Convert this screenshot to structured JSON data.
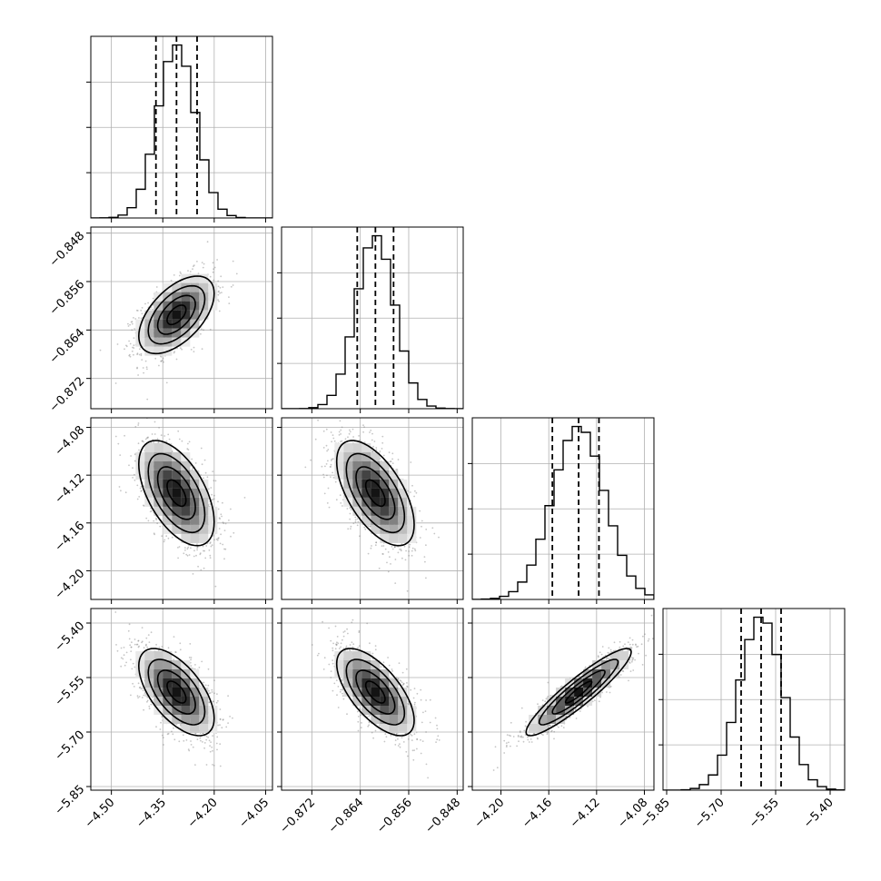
{
  "chart_data": {
    "type": "corner",
    "parameters": [
      {
        "mean": -4.31,
        "sd": 0.055,
        "range": [
          -4.56,
          -4.03
        ],
        "quantiles": [
          -4.37,
          -4.31,
          -4.25
        ],
        "ticks": [
          {
            "v": -4.5,
            "label": "−4.50"
          },
          {
            "v": -4.35,
            "label": "−4.35"
          },
          {
            "v": -4.2,
            "label": "−4.20"
          },
          {
            "v": -4.05,
            "label": "−4.05"
          }
        ]
      },
      {
        "mean": -0.8615,
        "sd": 0.0032,
        "range": [
          -0.877,
          -0.847
        ],
        "quantiles": [
          -0.8645,
          -0.8615,
          -0.8585
        ],
        "ticks": [
          {
            "v": -0.872,
            "label": "−0.872"
          },
          {
            "v": -0.864,
            "label": "−0.864"
          },
          {
            "v": -0.856,
            "label": "−0.856"
          },
          {
            "v": -0.848,
            "label": "−0.848"
          }
        ]
      },
      {
        "mean": -4.135,
        "sd": 0.022,
        "range": [
          -4.224,
          -4.072
        ],
        "quantiles": [
          -4.157,
          -4.135,
          -4.118
        ],
        "ticks": [
          {
            "v": -4.2,
            "label": "−4.20"
          },
          {
            "v": -4.16,
            "label": "−4.16"
          },
          {
            "v": -4.12,
            "label": "−4.12"
          },
          {
            "v": -4.08,
            "label": "−4.08"
          }
        ]
      },
      {
        "mean": -5.59,
        "sd": 0.06,
        "range": [
          -5.86,
          -5.36
        ],
        "quantiles": [
          -5.645,
          -5.59,
          -5.535
        ],
        "ticks": [
          {
            "v": -5.85,
            "label": "−5.85"
          },
          {
            "v": -5.7,
            "label": "−5.70"
          },
          {
            "v": -5.55,
            "label": "−5.55"
          },
          {
            "v": -5.4,
            "label": "−5.40"
          }
        ]
      }
    ],
    "correlations": [
      [
        1,
        0.55,
        -0.55,
        -0.6
      ],
      [
        0.55,
        1,
        -0.6,
        -0.65
      ],
      [
        -0.55,
        -0.6,
        1,
        0.92
      ],
      [
        -0.6,
        -0.65,
        0.92,
        1
      ]
    ],
    "histogram_bins": 20,
    "grid": true,
    "axis_labels": [
      "",
      "",
      "",
      ""
    ],
    "colors": {
      "line": "#000000",
      "points": "#808080",
      "grid": "#b0b0b0"
    }
  }
}
